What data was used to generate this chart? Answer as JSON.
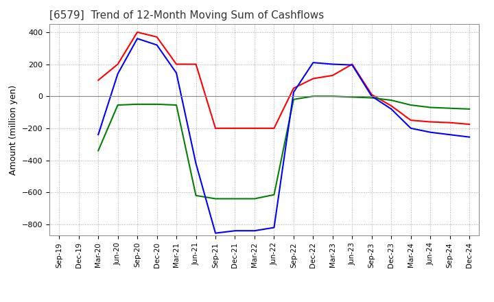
{
  "title": "[6579]  Trend of 12-Month Moving Sum of Cashflows",
  "ylabel": "Amount (million yen)",
  "xlabels": [
    "Sep-19",
    "Dec-19",
    "Mar-20",
    "Jun-20",
    "Sep-20",
    "Dec-20",
    "Mar-21",
    "Jun-21",
    "Sep-21",
    "Dec-21",
    "Mar-22",
    "Jun-22",
    "Sep-22",
    "Dec-22",
    "Mar-23",
    "Jun-23",
    "Sep-23",
    "Dec-23",
    "Mar-24",
    "Jun-24",
    "Sep-24",
    "Dec-24"
  ],
  "ylim": [
    -870,
    450
  ],
  "yticks": [
    -800,
    -600,
    -400,
    -200,
    0,
    200,
    400
  ],
  "operating": [
    null,
    null,
    100,
    200,
    400,
    370,
    200,
    200,
    -200,
    -200,
    -200,
    -200,
    50,
    110,
    130,
    200,
    10,
    -60,
    -150,
    -160,
    -165,
    -175
  ],
  "investing": [
    null,
    null,
    -340,
    -55,
    -50,
    -50,
    -55,
    -620,
    -640,
    -640,
    -640,
    -615,
    -20,
    0,
    0,
    -5,
    -10,
    -25,
    -55,
    -70,
    -75,
    -80
  ],
  "free": [
    null,
    null,
    -240,
    140,
    360,
    320,
    145,
    -420,
    -855,
    -840,
    -840,
    -820,
    25,
    210,
    200,
    195,
    0,
    -80,
    -200,
    -225,
    -240,
    -255
  ],
  "operating_color": "#ff0000",
  "investing_color": "#008000",
  "free_color": "#0000ff",
  "background_color": "#ffffff",
  "grid_color": "#aaaaaa"
}
